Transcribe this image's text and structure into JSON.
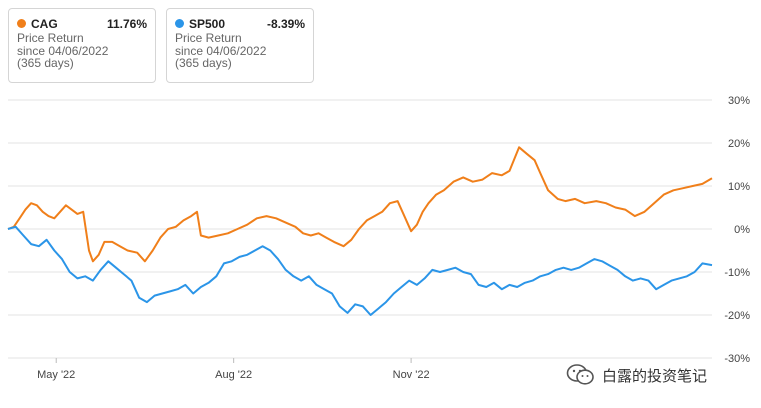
{
  "cards": [
    {
      "ticker": "CAG",
      "pct": "11.76%",
      "metric": "Price Return",
      "since": "since 04/06/2022",
      "days": "(365 days)",
      "color": "#f07f1a"
    },
    {
      "ticker": "SP500",
      "pct": "-8.39%",
      "metric": "Price Return",
      "since": "since 04/06/2022",
      "days": "(365 days)",
      "color": "#2b95e8"
    }
  ],
  "watermark": {
    "text": "白露的投资笔记",
    "icon": "wechat-icon"
  },
  "chart_data": {
    "type": "line",
    "xlim": [
      "2022-04-06",
      "2023-04-06"
    ],
    "ylim": [
      -30,
      30
    ],
    "x_ticks": [
      {
        "date": "2022-05-01",
        "label": "May '22"
      },
      {
        "date": "2022-08-01",
        "label": "Aug '22"
      },
      {
        "date": "2022-11-01",
        "label": "Nov '22"
      }
    ],
    "y_ticks": [
      {
        "value": 30,
        "label": "30%"
      },
      {
        "value": 20,
        "label": "20%"
      },
      {
        "value": 10,
        "label": "10%"
      },
      {
        "value": 0,
        "label": "0%"
      },
      {
        "value": -10,
        "label": "-10%"
      },
      {
        "value": -20,
        "label": "-20%"
      },
      {
        "value": -30,
        "label": "-30%"
      }
    ],
    "grid": true,
    "series": [
      {
        "name": "CAG",
        "color": "#f07f1a",
        "points": [
          [
            "2022-04-06",
            0
          ],
          [
            "2022-04-09",
            0.5
          ],
          [
            "2022-04-12",
            2.5
          ],
          [
            "2022-04-15",
            4.5
          ],
          [
            "2022-04-18",
            6
          ],
          [
            "2022-04-21",
            5.5
          ],
          [
            "2022-04-24",
            4
          ],
          [
            "2022-04-27",
            3
          ],
          [
            "2022-04-30",
            2.5
          ],
          [
            "2022-05-03",
            4
          ],
          [
            "2022-05-06",
            5.5
          ],
          [
            "2022-05-09",
            4.5
          ],
          [
            "2022-05-12",
            3.5
          ],
          [
            "2022-05-15",
            4
          ],
          [
            "2022-05-18",
            -5
          ],
          [
            "2022-05-20",
            -7.5
          ],
          [
            "2022-05-23",
            -6
          ],
          [
            "2022-05-26",
            -3
          ],
          [
            "2022-05-30",
            -3
          ],
          [
            "2022-06-03",
            -4
          ],
          [
            "2022-06-07",
            -5
          ],
          [
            "2022-06-12",
            -5.5
          ],
          [
            "2022-06-16",
            -7.5
          ],
          [
            "2022-06-20",
            -5
          ],
          [
            "2022-06-24",
            -2
          ],
          [
            "2022-06-28",
            0
          ],
          [
            "2022-07-02",
            0.5
          ],
          [
            "2022-07-06",
            2
          ],
          [
            "2022-07-10",
            3
          ],
          [
            "2022-07-13",
            4
          ],
          [
            "2022-07-15",
            -1.5
          ],
          [
            "2022-07-19",
            -2
          ],
          [
            "2022-07-24",
            -1.5
          ],
          [
            "2022-07-29",
            -1
          ],
          [
            "2022-08-03",
            0
          ],
          [
            "2022-08-08",
            1
          ],
          [
            "2022-08-13",
            2.5
          ],
          [
            "2022-08-18",
            3
          ],
          [
            "2022-08-23",
            2.5
          ],
          [
            "2022-08-28",
            1.5
          ],
          [
            "2022-09-02",
            0.5
          ],
          [
            "2022-09-06",
            -1
          ],
          [
            "2022-09-10",
            -1.5
          ],
          [
            "2022-09-14",
            -1
          ],
          [
            "2022-09-18",
            -2
          ],
          [
            "2022-09-22",
            -3
          ],
          [
            "2022-09-27",
            -4
          ],
          [
            "2022-10-01",
            -2.5
          ],
          [
            "2022-10-05",
            0
          ],
          [
            "2022-10-09",
            2
          ],
          [
            "2022-10-13",
            3
          ],
          [
            "2022-10-17",
            4
          ],
          [
            "2022-10-21",
            6
          ],
          [
            "2022-10-25",
            6.5
          ],
          [
            "2022-10-28",
            3.5
          ],
          [
            "2022-11-01",
            -0.5
          ],
          [
            "2022-11-04",
            1
          ],
          [
            "2022-11-07",
            4
          ],
          [
            "2022-11-10",
            6
          ],
          [
            "2022-11-14",
            8
          ],
          [
            "2022-11-18",
            9
          ],
          [
            "2022-11-23",
            11
          ],
          [
            "2022-11-28",
            12
          ],
          [
            "2022-12-03",
            11
          ],
          [
            "2022-12-08",
            11.5
          ],
          [
            "2022-12-13",
            13
          ],
          [
            "2022-12-18",
            12.5
          ],
          [
            "2022-12-22",
            13.5
          ],
          [
            "2022-12-27",
            19
          ],
          [
            "2022-12-31",
            17.5
          ],
          [
            "2023-01-04",
            16
          ],
          [
            "2023-01-07",
            13
          ],
          [
            "2023-01-11",
            9
          ],
          [
            "2023-01-16",
            7
          ],
          [
            "2023-01-20",
            6.5
          ],
          [
            "2023-01-25",
            7
          ],
          [
            "2023-01-30",
            6
          ],
          [
            "2023-02-05",
            6.5
          ],
          [
            "2023-02-10",
            6
          ],
          [
            "2023-02-15",
            5
          ],
          [
            "2023-02-20",
            4.5
          ],
          [
            "2023-02-25",
            3
          ],
          [
            "2023-03-02",
            4
          ],
          [
            "2023-03-07",
            6
          ],
          [
            "2023-03-12",
            8
          ],
          [
            "2023-03-17",
            9
          ],
          [
            "2023-03-22",
            9.5
          ],
          [
            "2023-03-27",
            10
          ],
          [
            "2023-04-01",
            10.5
          ],
          [
            "2023-04-06",
            11.8
          ]
        ]
      },
      {
        "name": "SP500",
        "color": "#2b95e8",
        "points": [
          [
            "2022-04-06",
            0
          ],
          [
            "2022-04-10",
            0.5
          ],
          [
            "2022-04-14",
            -1.5
          ],
          [
            "2022-04-18",
            -3.5
          ],
          [
            "2022-04-22",
            -4
          ],
          [
            "2022-04-26",
            -2.5
          ],
          [
            "2022-04-30",
            -5
          ],
          [
            "2022-05-04",
            -7
          ],
          [
            "2022-05-08",
            -10
          ],
          [
            "2022-05-12",
            -11.5
          ],
          [
            "2022-05-16",
            -11
          ],
          [
            "2022-05-20",
            -12
          ],
          [
            "2022-05-24",
            -9.5
          ],
          [
            "2022-05-28",
            -7.5
          ],
          [
            "2022-06-01",
            -9
          ],
          [
            "2022-06-05",
            -10.5
          ],
          [
            "2022-06-09",
            -12
          ],
          [
            "2022-06-13",
            -16
          ],
          [
            "2022-06-17",
            -17
          ],
          [
            "2022-06-21",
            -15.5
          ],
          [
            "2022-06-25",
            -15
          ],
          [
            "2022-06-29",
            -14.5
          ],
          [
            "2022-07-03",
            -14
          ],
          [
            "2022-07-07",
            -13
          ],
          [
            "2022-07-11",
            -15
          ],
          [
            "2022-07-15",
            -13.5
          ],
          [
            "2022-07-19",
            -12.5
          ],
          [
            "2022-07-23",
            -11
          ],
          [
            "2022-07-27",
            -8
          ],
          [
            "2022-07-31",
            -7.5
          ],
          [
            "2022-08-04",
            -6.5
          ],
          [
            "2022-08-08",
            -6
          ],
          [
            "2022-08-12",
            -5
          ],
          [
            "2022-08-16",
            -4
          ],
          [
            "2022-08-20",
            -5
          ],
          [
            "2022-08-24",
            -7
          ],
          [
            "2022-08-28",
            -9.5
          ],
          [
            "2022-09-01",
            -11
          ],
          [
            "2022-09-05",
            -12
          ],
          [
            "2022-09-09",
            -11
          ],
          [
            "2022-09-13",
            -13
          ],
          [
            "2022-09-17",
            -14
          ],
          [
            "2022-09-21",
            -15
          ],
          [
            "2022-09-25",
            -18
          ],
          [
            "2022-09-29",
            -19.5
          ],
          [
            "2022-10-03",
            -17.5
          ],
          [
            "2022-10-07",
            -18
          ],
          [
            "2022-10-11",
            -20
          ],
          [
            "2022-10-15",
            -18.5
          ],
          [
            "2022-10-19",
            -17
          ],
          [
            "2022-10-23",
            -15
          ],
          [
            "2022-10-27",
            -13.5
          ],
          [
            "2022-10-31",
            -12
          ],
          [
            "2022-11-04",
            -13
          ],
          [
            "2022-11-08",
            -11.5
          ],
          [
            "2022-11-12",
            -9.5
          ],
          [
            "2022-11-16",
            -10
          ],
          [
            "2022-11-20",
            -9.5
          ],
          [
            "2022-11-24",
            -9
          ],
          [
            "2022-11-28",
            -10
          ],
          [
            "2022-12-02",
            -10.5
          ],
          [
            "2022-12-06",
            -13
          ],
          [
            "2022-12-10",
            -13.5
          ],
          [
            "2022-12-14",
            -12.5
          ],
          [
            "2022-12-18",
            -14
          ],
          [
            "2022-12-22",
            -13
          ],
          [
            "2022-12-26",
            -13.5
          ],
          [
            "2022-12-30",
            -12.5
          ],
          [
            "2023-01-03",
            -12
          ],
          [
            "2023-01-07",
            -11
          ],
          [
            "2023-01-11",
            -10.5
          ],
          [
            "2023-01-15",
            -9.5
          ],
          [
            "2023-01-19",
            -9
          ],
          [
            "2023-01-23",
            -9.5
          ],
          [
            "2023-01-27",
            -9
          ],
          [
            "2023-01-31",
            -8
          ],
          [
            "2023-02-04",
            -7
          ],
          [
            "2023-02-08",
            -7.5
          ],
          [
            "2023-02-12",
            -8.5
          ],
          [
            "2023-02-16",
            -9.5
          ],
          [
            "2023-02-20",
            -11
          ],
          [
            "2023-02-24",
            -12
          ],
          [
            "2023-02-28",
            -11.5
          ],
          [
            "2023-03-04",
            -12
          ],
          [
            "2023-03-08",
            -14
          ],
          [
            "2023-03-12",
            -13
          ],
          [
            "2023-03-16",
            -12
          ],
          [
            "2023-03-20",
            -11.5
          ],
          [
            "2023-03-24",
            -11
          ],
          [
            "2023-03-28",
            -10
          ],
          [
            "2023-04-01",
            -8
          ],
          [
            "2023-04-06",
            -8.4
          ]
        ]
      }
    ]
  }
}
